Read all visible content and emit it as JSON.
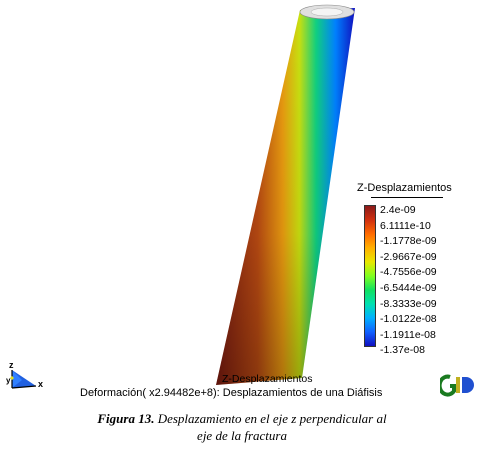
{
  "legend": {
    "title": "Z-Desplazamientos",
    "values": [
      "2.4e-09",
      "6.1111e-10",
      "-1.1778e-09",
      "-2.9667e-09",
      "-4.7556e-09",
      "-6.5444e-09",
      "-8.3333e-09",
      "-1.0122e-08",
      "-1.1911e-08",
      "-1.37e-08"
    ]
  },
  "viewport": {
    "bottom_label": "Z-Desplazamientos",
    "deformation_label": "Deformación( x2.94482e+8): Desplazamientos de una Diáfisis",
    "axes": {
      "z": "z",
      "y": "y",
      "x": "x"
    }
  },
  "caption": {
    "figure": "Figura 13.",
    "text_line1": " Desplazamiento en el eje z perpendicular al",
    "text_line2": "eje de la fractura"
  },
  "colors": {
    "max": "#8b1a1a",
    "min": "#1010c0",
    "background": "#ffffff"
  }
}
